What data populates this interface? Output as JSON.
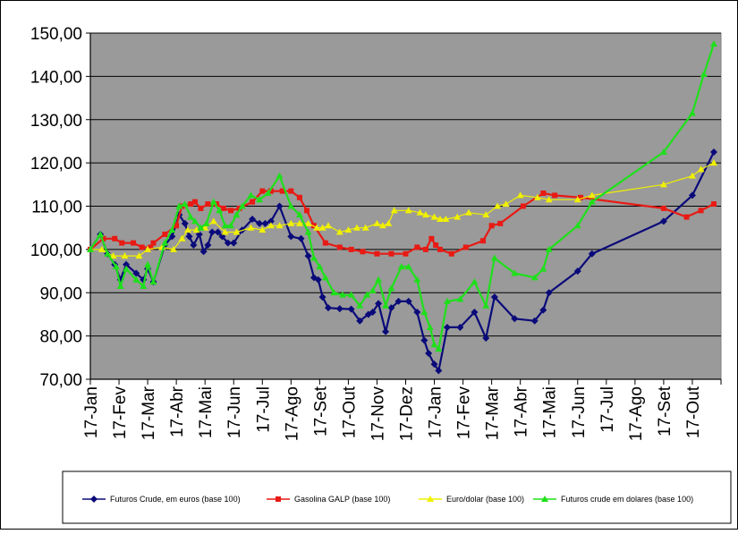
{
  "chart_data": {
    "type": "line",
    "title": "",
    "xlabel": "",
    "ylabel": "",
    "ylim": [
      70,
      150
    ],
    "y_ticks": [
      "70,00",
      "80,00",
      "90,00",
      "100,00",
      "110,00",
      "120,00",
      "130,00",
      "140,00",
      "150,00"
    ],
    "x_tick_labels": [
      "17-Jan",
      "17-Fev",
      "17-Mar",
      "17-Abr",
      "17-Mai",
      "17-Jun",
      "17-Jul",
      "17-Ago",
      "17-Set",
      "17-Out",
      "17-Nov",
      "17-Dez",
      "17-Jan",
      "17-Fev",
      "17-Mar",
      "17-Abr",
      "17-Mai",
      "17-Jun",
      "17-Jul",
      "17-Ago",
      "17-Set",
      "17-Out"
    ],
    "grid": "horizontal",
    "plot_background": "#9a9a9a",
    "legend_position": "bottom",
    "series": [
      {
        "name": "Futuros Crude, em euros (base 100)",
        "color": "#0a0a7a",
        "marker": "diamond",
        "points": [
          [
            0,
            100
          ],
          [
            0.35,
            103.5
          ],
          [
            0.6,
            99
          ],
          [
            0.85,
            96.5
          ],
          [
            1.05,
            93
          ],
          [
            1.25,
            96.5
          ],
          [
            1.6,
            94.5
          ],
          [
            1.85,
            93
          ],
          [
            2.0,
            95.5
          ],
          [
            2.2,
            92.5
          ],
          [
            2.6,
            101
          ],
          [
            2.85,
            103
          ],
          [
            3.1,
            108
          ],
          [
            3.3,
            106
          ],
          [
            3.45,
            103
          ],
          [
            3.6,
            101
          ],
          [
            3.8,
            103.5
          ],
          [
            3.95,
            99.5
          ],
          [
            4.1,
            101
          ],
          [
            4.25,
            104
          ],
          [
            4.45,
            104
          ],
          [
            4.6,
            103
          ],
          [
            4.8,
            101.5
          ],
          [
            5.0,
            101.5
          ],
          [
            5.3,
            104.5
          ],
          [
            5.65,
            107
          ],
          [
            5.9,
            106
          ],
          [
            6.1,
            106
          ],
          [
            6.3,
            106.5
          ],
          [
            6.6,
            110
          ],
          [
            7.0,
            103
          ],
          [
            7.35,
            102.5
          ],
          [
            7.6,
            98.5
          ],
          [
            7.8,
            93.5
          ],
          [
            7.95,
            93
          ],
          [
            8.1,
            89
          ],
          [
            8.3,
            86.5
          ],
          [
            8.7,
            86.3
          ],
          [
            9.1,
            86.2
          ],
          [
            9.4,
            83.5
          ],
          [
            9.7,
            85
          ],
          [
            9.85,
            85.5
          ],
          [
            10.05,
            87.5
          ],
          [
            10.3,
            81
          ],
          [
            10.5,
            86.5
          ],
          [
            10.75,
            88
          ],
          [
            11.1,
            88
          ],
          [
            11.4,
            85.5
          ],
          [
            11.65,
            79
          ],
          [
            11.8,
            76
          ],
          [
            12.0,
            73.5
          ],
          [
            12.15,
            72
          ],
          [
            12.45,
            82
          ],
          [
            12.9,
            82
          ],
          [
            13.4,
            85.5
          ],
          [
            13.8,
            79.5
          ],
          [
            14.1,
            89
          ],
          [
            14.8,
            84
          ],
          [
            15.5,
            83.5
          ],
          [
            15.8,
            86
          ],
          [
            16.0,
            90
          ],
          [
            17.0,
            95
          ],
          [
            17.5,
            99
          ],
          [
            20.0,
            106.5
          ],
          [
            21.0,
            112.5
          ],
          [
            21.75,
            122.5
          ]
        ]
      },
      {
        "name": "Gasolina GALP (base 100)",
        "color": "#e81a14",
        "marker": "square",
        "points": [
          [
            0,
            100
          ],
          [
            0.45,
            102.5
          ],
          [
            0.85,
            102.5
          ],
          [
            1.1,
            101.5
          ],
          [
            1.5,
            101.5
          ],
          [
            1.8,
            100.5
          ],
          [
            2.1,
            100.5
          ],
          [
            2.2,
            101.5
          ],
          [
            2.6,
            103.5
          ],
          [
            3.0,
            105.5
          ],
          [
            3.2,
            110
          ],
          [
            3.5,
            110.5
          ],
          [
            3.65,
            111
          ],
          [
            3.85,
            109.5
          ],
          [
            4.1,
            110.5
          ],
          [
            4.4,
            110.5
          ],
          [
            4.65,
            109.5
          ],
          [
            4.9,
            109
          ],
          [
            5.2,
            109.5
          ],
          [
            5.65,
            111
          ],
          [
            6.0,
            113.5
          ],
          [
            6.3,
            113.5
          ],
          [
            6.7,
            113.5
          ],
          [
            7.0,
            113.5
          ],
          [
            7.3,
            112
          ],
          [
            7.55,
            109
          ],
          [
            7.8,
            105.5
          ],
          [
            8.2,
            101.5
          ],
          [
            8.7,
            100.5
          ],
          [
            9.1,
            100
          ],
          [
            9.5,
            99.5
          ],
          [
            10.0,
            99
          ],
          [
            10.5,
            99
          ],
          [
            11.0,
            99
          ],
          [
            11.4,
            100.5
          ],
          [
            11.7,
            100
          ],
          [
            11.9,
            102.5
          ],
          [
            12.05,
            101
          ],
          [
            12.2,
            100
          ],
          [
            12.6,
            99
          ],
          [
            13.1,
            100.5
          ],
          [
            13.7,
            102
          ],
          [
            14.0,
            105.5
          ],
          [
            14.3,
            106
          ],
          [
            15.1,
            110
          ],
          [
            15.8,
            113
          ],
          [
            16.2,
            112.5
          ],
          [
            17.1,
            112
          ],
          [
            20.0,
            109.5
          ],
          [
            20.8,
            107.5
          ],
          [
            21.3,
            109
          ],
          [
            21.75,
            110.5
          ]
        ]
      },
      {
        "name": "Euro/dolar (base 100)",
        "color": "#f0f000",
        "marker": "triangle",
        "points": [
          [
            0,
            100
          ],
          [
            0.4,
            100
          ],
          [
            0.8,
            98.5
          ],
          [
            1.2,
            98.5
          ],
          [
            1.7,
            98.5
          ],
          [
            2.0,
            100
          ],
          [
            2.5,
            100.5
          ],
          [
            2.9,
            100
          ],
          [
            3.2,
            102.5
          ],
          [
            3.4,
            104.5
          ],
          [
            3.7,
            104.5
          ],
          [
            4.0,
            105
          ],
          [
            4.3,
            106.5
          ],
          [
            4.7,
            104
          ],
          [
            5.1,
            104
          ],
          [
            5.6,
            105
          ],
          [
            6.0,
            104.5
          ],
          [
            6.3,
            105.5
          ],
          [
            6.6,
            105.5
          ],
          [
            7.0,
            106
          ],
          [
            7.3,
            106
          ],
          [
            7.6,
            106
          ],
          [
            7.9,
            105
          ],
          [
            8.1,
            105
          ],
          [
            8.3,
            105.5
          ],
          [
            8.7,
            104
          ],
          [
            9.0,
            104.5
          ],
          [
            9.3,
            105
          ],
          [
            9.6,
            105
          ],
          [
            10.0,
            106
          ],
          [
            10.2,
            105.5
          ],
          [
            10.4,
            106
          ],
          [
            10.6,
            109
          ],
          [
            11.1,
            109
          ],
          [
            11.5,
            108.5
          ],
          [
            11.7,
            108
          ],
          [
            12.0,
            107.5
          ],
          [
            12.2,
            107
          ],
          [
            12.4,
            107
          ],
          [
            12.8,
            107.5
          ],
          [
            13.2,
            108.5
          ],
          [
            13.8,
            108
          ],
          [
            14.2,
            110
          ],
          [
            14.5,
            110.5
          ],
          [
            15.0,
            112.5
          ],
          [
            15.6,
            112
          ],
          [
            16.0,
            111.5
          ],
          [
            17.0,
            111.5
          ],
          [
            17.5,
            112.5
          ],
          [
            20.0,
            115
          ],
          [
            21.0,
            117
          ],
          [
            21.3,
            118.5
          ],
          [
            21.75,
            120
          ]
        ]
      },
      {
        "name": "Futuros crude em dolares (base 100)",
        "color": "#1ee01a",
        "marker": "triangle",
        "points": [
          [
            0,
            100
          ],
          [
            0.35,
            103.5
          ],
          [
            0.6,
            99
          ],
          [
            0.9,
            96
          ],
          [
            1.05,
            91.5
          ],
          [
            1.25,
            95.5
          ],
          [
            1.6,
            93
          ],
          [
            1.85,
            91.5
          ],
          [
            2.0,
            96.5
          ],
          [
            2.2,
            92.5
          ],
          [
            2.6,
            101.5
          ],
          [
            2.85,
            104.5
          ],
          [
            3.1,
            110
          ],
          [
            3.3,
            110.5
          ],
          [
            3.5,
            107.5
          ],
          [
            3.65,
            106.5
          ],
          [
            3.85,
            105
          ],
          [
            4.05,
            106
          ],
          [
            4.3,
            111
          ],
          [
            4.5,
            109
          ],
          [
            4.7,
            105.5
          ],
          [
            4.9,
            105.5
          ],
          [
            5.1,
            108
          ],
          [
            5.3,
            110
          ],
          [
            5.6,
            112.5
          ],
          [
            5.9,
            111.5
          ],
          [
            6.2,
            113
          ],
          [
            6.6,
            117
          ],
          [
            7.0,
            110
          ],
          [
            7.3,
            108
          ],
          [
            7.6,
            104
          ],
          [
            7.8,
            98
          ],
          [
            8.0,
            96
          ],
          [
            8.2,
            93.5
          ],
          [
            8.5,
            90
          ],
          [
            8.8,
            89.5
          ],
          [
            9.1,
            89.5
          ],
          [
            9.4,
            87
          ],
          [
            9.65,
            89.5
          ],
          [
            9.85,
            90.5
          ],
          [
            10.05,
            93
          ],
          [
            10.3,
            87
          ],
          [
            10.5,
            91
          ],
          [
            10.85,
            96
          ],
          [
            11.1,
            96
          ],
          [
            11.4,
            93
          ],
          [
            11.65,
            85.5
          ],
          [
            11.85,
            82
          ],
          [
            12.0,
            78
          ],
          [
            12.15,
            77
          ],
          [
            12.45,
            88
          ],
          [
            12.9,
            88.5
          ],
          [
            13.4,
            92.5
          ],
          [
            13.8,
            87
          ],
          [
            14.1,
            98
          ],
          [
            14.8,
            94.5
          ],
          [
            15.5,
            93.5
          ],
          [
            15.8,
            95.5
          ],
          [
            16.0,
            100
          ],
          [
            17.0,
            105.5
          ],
          [
            17.5,
            111
          ],
          [
            20.0,
            122.5
          ],
          [
            21.0,
            131.5
          ],
          [
            21.4,
            140.5
          ],
          [
            21.75,
            147.5
          ]
        ]
      }
    ]
  }
}
